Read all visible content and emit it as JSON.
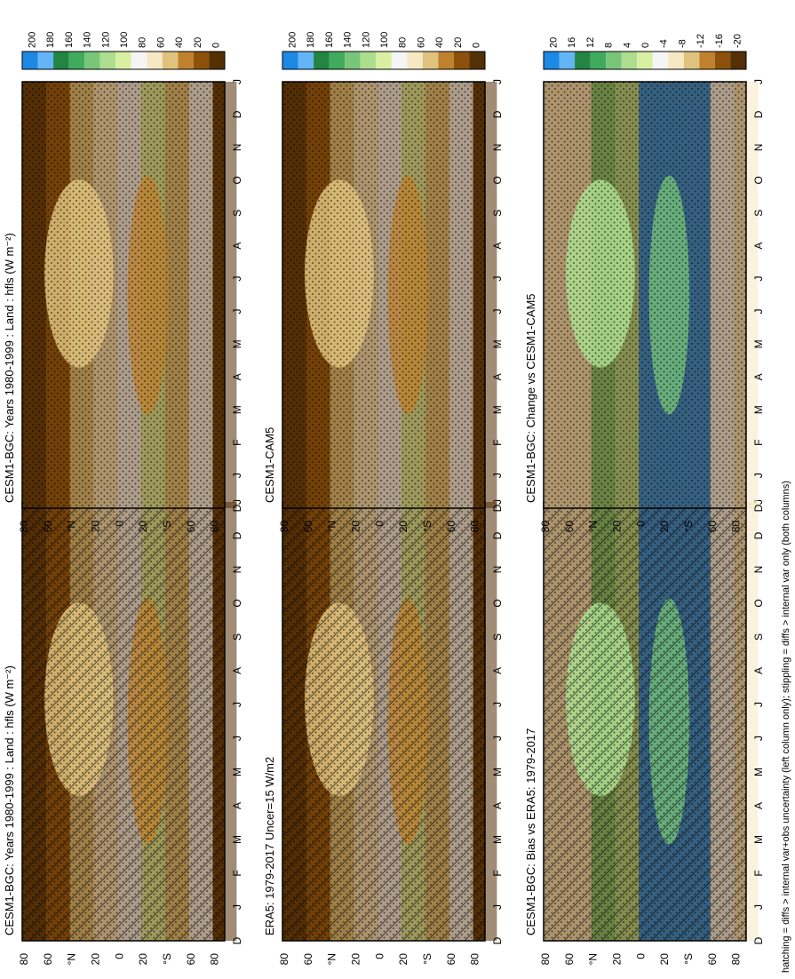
{
  "footnote": "hatching = diffs > internal var+obs uncertainty (left column only); stippling = diffs > internal var only (both columns)",
  "month_ticks": [
    "D",
    "J",
    "F",
    "M",
    "A",
    "M",
    "J",
    "J",
    "A",
    "S",
    "O",
    "N",
    "D",
    "J"
  ],
  "lat_ticks": [
    "80",
    "60",
    "°N",
    "20",
    "0",
    "20",
    "°S",
    "60",
    "80"
  ],
  "colors": {
    "brown_dark": "#543005",
    "brown": "#8c510a",
    "tan": "#bf812d",
    "sand": "#dfc27d",
    "cream": "#f6e8c3",
    "white": "#f5f5f5",
    "green_pale": "#d9f0a3",
    "green_light": "#addd8e",
    "green": "#78c679",
    "green_mid": "#41ab5d",
    "green_dark": "#238443",
    "teal": "#2c8c5a",
    "blue": "#1e88e5",
    "blue_light": "#64b5f6"
  },
  "chart_data": [
    {
      "type": "heatmap",
      "title": "CESM1-BGC: Years 1980-1999 : Land : hfls (W m⁻²)",
      "x_ticks": [
        "D",
        "J",
        "F",
        "M",
        "A",
        "M",
        "J",
        "J",
        "A",
        "S",
        "O",
        "N",
        "D",
        "J"
      ],
      "y_ticks": [
        "80",
        "60",
        "°N",
        "20",
        "0",
        "20",
        "°S",
        "60",
        "80"
      ],
      "colorbar": {
        "ticks": [
          "200",
          "180",
          "160",
          "140",
          "120",
          "100",
          "80",
          "60",
          "40",
          "20",
          "0"
        ],
        "range": [
          0,
          200
        ]
      },
      "hatching": true,
      "stippling": true
    },
    {
      "type": "heatmap",
      "title": "CESM1-BGC: Years 1980-1999 : Land : hfls (W m⁻²)",
      "x_ticks": [
        "D",
        "J",
        "F",
        "M",
        "A",
        "M",
        "J",
        "J",
        "A",
        "S",
        "O",
        "N",
        "D",
        "J"
      ],
      "y_ticks": [
        "80",
        "60",
        "°N",
        "20",
        "0",
        "20",
        "°S",
        "60",
        "80"
      ],
      "colorbar": {
        "ticks": [
          "200",
          "180",
          "160",
          "140",
          "120",
          "100",
          "80",
          "60",
          "40",
          "20",
          "0"
        ],
        "range": [
          0,
          200
        ]
      },
      "stippling": true
    },
    {
      "type": "heatmap",
      "title": "ERA5: 1979-2017 Uncer=15 W/m2",
      "x_ticks": [
        "D",
        "J",
        "F",
        "M",
        "A",
        "M",
        "J",
        "J",
        "A",
        "S",
        "O",
        "N",
        "D",
        "J"
      ],
      "y_ticks": [
        "80",
        "60",
        "°N",
        "20",
        "0",
        "20",
        "°S",
        "60",
        "80"
      ],
      "colorbar": {
        "ticks": [
          "200",
          "180",
          "160",
          "140",
          "120",
          "100",
          "80",
          "60",
          "40",
          "20",
          "0"
        ],
        "range": [
          0,
          200
        ]
      },
      "hatching": true,
      "stippling": true
    },
    {
      "type": "heatmap",
      "title": "CESM1-CAM5",
      "x_ticks": [
        "D",
        "J",
        "F",
        "M",
        "A",
        "M",
        "J",
        "J",
        "A",
        "S",
        "O",
        "N",
        "D",
        "J"
      ],
      "y_ticks": [
        "80",
        "60",
        "°N",
        "20",
        "0",
        "20",
        "°S",
        "60",
        "80"
      ],
      "colorbar": {
        "ticks": [
          "200",
          "180",
          "160",
          "140",
          "120",
          "100",
          "80",
          "60",
          "40",
          "20",
          "0"
        ],
        "range": [
          0,
          200
        ]
      },
      "stippling": true
    },
    {
      "type": "heatmap",
      "title": "CESM1-BGC: Bias vs ERA5: 1979-2017",
      "x_ticks": [
        "D",
        "J",
        "F",
        "M",
        "A",
        "M",
        "J",
        "J",
        "A",
        "S",
        "O",
        "N",
        "D",
        "J"
      ],
      "y_ticks": [
        "80",
        "60",
        "°N",
        "20",
        "0",
        "20",
        "°S",
        "60",
        "80"
      ],
      "colorbar": {
        "ticks": [
          "20",
          "16",
          "12",
          "8",
          "4",
          "0",
          "-4",
          "-8",
          "-12",
          "-16",
          "-20"
        ],
        "range": [
          -20,
          20
        ]
      },
      "hatching": true,
      "stippling": true
    },
    {
      "type": "heatmap",
      "title": "CESM1-BGC: Change vs CESM1-CAM5",
      "x_ticks": [
        "D",
        "J",
        "F",
        "M",
        "A",
        "M",
        "J",
        "J",
        "A",
        "S",
        "O",
        "N",
        "D",
        "J"
      ],
      "y_ticks": [
        "80",
        "60",
        "°N",
        "20",
        "0",
        "20",
        "°S",
        "60",
        "80"
      ],
      "colorbar": {
        "ticks": [
          "20",
          "16",
          "12",
          "8",
          "4",
          "0",
          "-4",
          "-8",
          "-12",
          "-16",
          "-20"
        ],
        "range": [
          -20,
          20
        ]
      },
      "stippling": true
    }
  ]
}
